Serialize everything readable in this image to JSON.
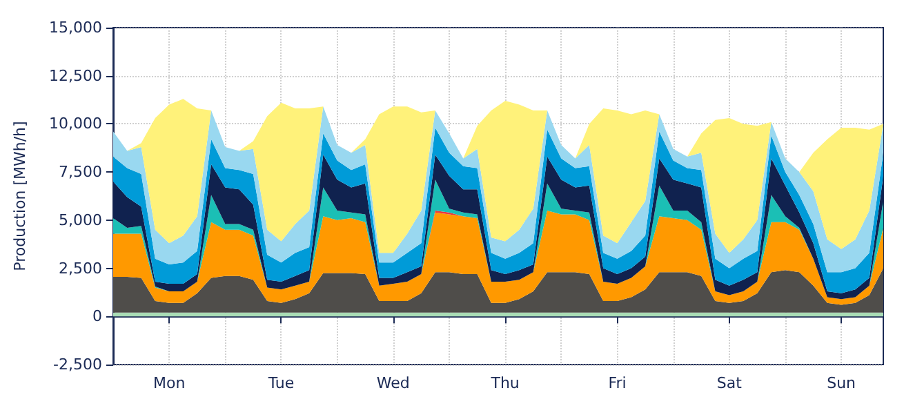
{
  "chart_data": {
    "type": "area",
    "ylabel": "Production [MWh/h]",
    "stacked": true,
    "grid": true,
    "categories": [
      null,
      null,
      null,
      null,
      "Mon",
      null,
      null,
      null,
      null,
      null,
      null,
      null,
      "Tue",
      null,
      null,
      null,
      null,
      null,
      null,
      null,
      "Wed",
      null,
      null,
      null,
      null,
      null,
      null,
      null,
      "Thu",
      null,
      null,
      null,
      null,
      null,
      null,
      null,
      "Fri",
      null,
      null,
      null,
      null,
      null,
      null,
      null,
      "Sat",
      null,
      null,
      null,
      null,
      null,
      null,
      null,
      "Sun",
      null,
      null,
      null
    ],
    "ylim": [
      -2500,
      15000
    ],
    "yticks": [
      {
        "value": -2500,
        "label": "-2,500"
      },
      0,
      {
        "value": 2500,
        "label": "2,500"
      },
      {
        "value": 5000,
        "label": "5,000"
      },
      {
        "value": 7500,
        "label": "7,500"
      },
      {
        "value": 10000,
        "label": "10,000"
      },
      {
        "value": 12500,
        "label": "12,500"
      },
      {
        "value": 15000,
        "label": "15,000"
      }
    ],
    "series": [
      {
        "color": "#a9dcb5",
        "values": [
          200,
          200,
          200,
          200,
          200,
          200,
          200,
          200,
          200,
          200,
          200,
          200,
          200,
          200,
          200,
          200,
          200,
          200,
          200,
          200,
          200,
          200,
          200,
          200,
          200,
          200,
          200,
          200,
          200,
          200,
          200,
          200,
          200,
          200,
          200,
          200,
          200,
          200,
          200,
          200,
          200,
          200,
          200,
          200,
          200,
          200,
          200,
          200,
          200,
          200,
          200,
          200,
          200,
          200,
          200,
          200
        ]
      },
      {
        "color": "#4f4d4a",
        "values": [
          1850,
          1850,
          1800,
          600,
          500,
          500,
          1000,
          1800,
          1900,
          1900,
          1700,
          600,
          500,
          700,
          1000,
          2050,
          2050,
          2050,
          2000,
          600,
          600,
          600,
          1000,
          2100,
          2100,
          2000,
          2000,
          500,
          500,
          700,
          1100,
          2100,
          2100,
          2100,
          2000,
          600,
          600,
          800,
          1200,
          2100,
          2100,
          2100,
          1900,
          600,
          500,
          600,
          1000,
          2100,
          2200,
          2100,
          1400,
          500,
          400,
          500,
          900,
          2300
        ]
      },
      {
        "color": "#ff9900",
        "values": [
          2250,
          2250,
          2300,
          700,
          600,
          600,
          600,
          2900,
          2400,
          2400,
          2300,
          700,
          700,
          700,
          600,
          2950,
          2750,
          2850,
          2700,
          800,
          900,
          1000,
          1000,
          3100,
          3000,
          3000,
          2900,
          1100,
          1100,
          1000,
          1000,
          3200,
          3000,
          3000,
          2800,
          1000,
          900,
          1000,
          1200,
          2900,
          2800,
          2700,
          2400,
          500,
          400,
          500,
          600,
          2600,
          2500,
          2200,
          1400,
          300,
          300,
          300,
          500,
          2100
        ]
      },
      {
        "color": "#e8383d",
        "values": [
          0,
          0,
          0,
          0,
          0,
          0,
          0,
          0,
          0,
          0,
          0,
          0,
          0,
          0,
          0,
          0,
          0,
          0,
          0,
          0,
          0,
          0,
          0,
          100,
          100,
          0,
          0,
          0,
          0,
          0,
          0,
          0,
          0,
          0,
          0,
          0,
          0,
          0,
          0,
          0,
          0,
          0,
          0,
          0,
          0,
          0,
          0,
          0,
          0,
          0,
          0,
          0,
          0,
          0,
          0,
          0
        ]
      },
      {
        "color": "#1bbfb5",
        "values": [
          800,
          300,
          400,
          50,
          0,
          0,
          0,
          1400,
          300,
          300,
          300,
          0,
          0,
          0,
          0,
          1500,
          500,
          300,
          400,
          0,
          0,
          0,
          0,
          1600,
          200,
          200,
          200,
          0,
          0,
          0,
          0,
          1400,
          300,
          200,
          400,
          0,
          0,
          0,
          0,
          1600,
          400,
          500,
          400,
          0,
          0,
          0,
          0,
          1400,
          300,
          100,
          0,
          0,
          0,
          0,
          0,
          1400
        ]
      },
      {
        "color": "#10224f",
        "values": [
          1900,
          1600,
          1000,
          250,
          400,
          400,
          400,
          1600,
          1900,
          1800,
          1300,
          400,
          400,
          500,
          600,
          1700,
          1600,
          1300,
          1600,
          400,
          300,
          500,
          400,
          1300,
          1700,
          1200,
          1300,
          600,
          400,
          500,
          400,
          1400,
          1500,
          1200,
          1400,
          700,
          500,
          500,
          500,
          1400,
          1600,
          1400,
          1800,
          600,
          500,
          600,
          500,
          1900,
          1600,
          800,
          800,
          300,
          300,
          400,
          400,
          1300
        ]
      },
      {
        "color": "#009bd8",
        "values": [
          1300,
          1500,
          1700,
          1200,
          1000,
          1100,
          1200,
          1300,
          1000,
          1000,
          1600,
          1300,
          1000,
          1200,
          1200,
          1100,
          1000,
          900,
          1000,
          800,
          800,
          1000,
          1200,
          1400,
          1200,
          1200,
          1100,
          900,
          800,
          900,
          1100,
          1400,
          1100,
          1000,
          1000,
          800,
          800,
          900,
          1100,
          1400,
          1000,
          800,
          900,
          1100,
          900,
          1100,
          1100,
          1200,
          700,
          900,
          1000,
          1000,
          1100,
          1100,
          1300,
          1200
        ]
      },
      {
        "color": "#99d8f0",
        "values": [
          1300,
          900,
          1400,
          1500,
          1100,
          1400,
          1800,
          1500,
          1100,
          1000,
          1300,
          1300,
          1100,
          1500,
          1900,
          1400,
          800,
          900,
          1000,
          500,
          500,
          1000,
          1700,
          900,
          1000,
          400,
          1000,
          800,
          900,
          1200,
          1800,
          1000,
          700,
          500,
          1100,
          900,
          800,
          1500,
          1800,
          900,
          600,
          600,
          900,
          1300,
          800,
          1000,
          1600,
          700,
          700,
          1200,
          1700,
          1700,
          1200,
          1500,
          2200,
          1500
        ]
      },
      {
        "color": "#fff27a",
        "values": [
          0,
          0,
          200,
          5800,
          7200,
          7100,
          5600,
          0,
          0,
          0,
          400,
          5900,
          7200,
          6000,
          5300,
          0,
          0,
          0,
          300,
          7200,
          7600,
          6600,
          5100,
          0,
          0,
          0,
          1200,
          6600,
          7300,
          6500,
          5100,
          0,
          0,
          0,
          1100,
          6600,
          6900,
          5600,
          4700,
          0,
          0,
          0,
          1000,
          5900,
          7000,
          6000,
          4900,
          0,
          0,
          0,
          2000,
          5200,
          6300,
          5800,
          4200,
          0
        ]
      }
    ]
  }
}
